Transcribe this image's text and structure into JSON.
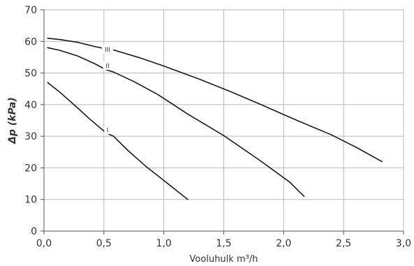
{
  "chart_data": {
    "type": "line",
    "title": "",
    "xlabel": "Vooluhulk m³/h",
    "ylabel": "Δp (kPa)",
    "xlim": [
      0,
      3.0
    ],
    "ylim": [
      0,
      70
    ],
    "x_ticks": [
      0,
      0.5,
      1.0,
      1.5,
      2.0,
      2.5,
      3.0
    ],
    "x_tick_labels": [
      "0,0",
      "0,5",
      "1,0",
      "1,5",
      "2,0",
      "2,5",
      "3,0"
    ],
    "y_ticks": [
      0,
      10,
      20,
      30,
      40,
      50,
      60,
      70
    ],
    "y_tick_labels": [
      "0",
      "10",
      "20",
      "30",
      "40",
      "50",
      "60",
      "70"
    ],
    "grid": true,
    "legend": "none",
    "line_color": "#1a1a1a",
    "grid_color": "#b8b8b8",
    "series": [
      {
        "name": "I",
        "label_at": [
          0.53,
          32
        ],
        "x": [
          0.03,
          0.13,
          0.25,
          0.38,
          0.52,
          0.58,
          0.7,
          0.85,
          1.0,
          1.1,
          1.2
        ],
        "y": [
          47,
          44,
          40,
          35.5,
          31,
          30,
          25.5,
          20.5,
          16,
          13,
          10
        ]
      },
      {
        "name": "II",
        "label_at": [
          0.53,
          52.3
        ],
        "x": [
          0.03,
          0.13,
          0.28,
          0.42,
          0.52,
          0.58,
          0.75,
          0.95,
          1.2,
          1.5,
          1.8,
          2.05,
          2.17
        ],
        "y": [
          58,
          57.2,
          55.4,
          53,
          51,
          50.3,
          47.3,
          43.2,
          37,
          30.2,
          22.4,
          15.5,
          11
        ]
      },
      {
        "name": "III",
        "label_at": [
          0.53,
          57.5
        ],
        "x": [
          0.03,
          0.13,
          0.28,
          0.42,
          0.52,
          0.58,
          0.8,
          1.0,
          1.3,
          1.55,
          1.8,
          2.1,
          2.4,
          2.6,
          2.82
        ],
        "y": [
          61,
          60.6,
          59.7,
          58.4,
          57.6,
          57.3,
          54.8,
          52.2,
          48,
          44.2,
          40.2,
          35.2,
          30.4,
          26.6,
          22
        ]
      }
    ]
  }
}
